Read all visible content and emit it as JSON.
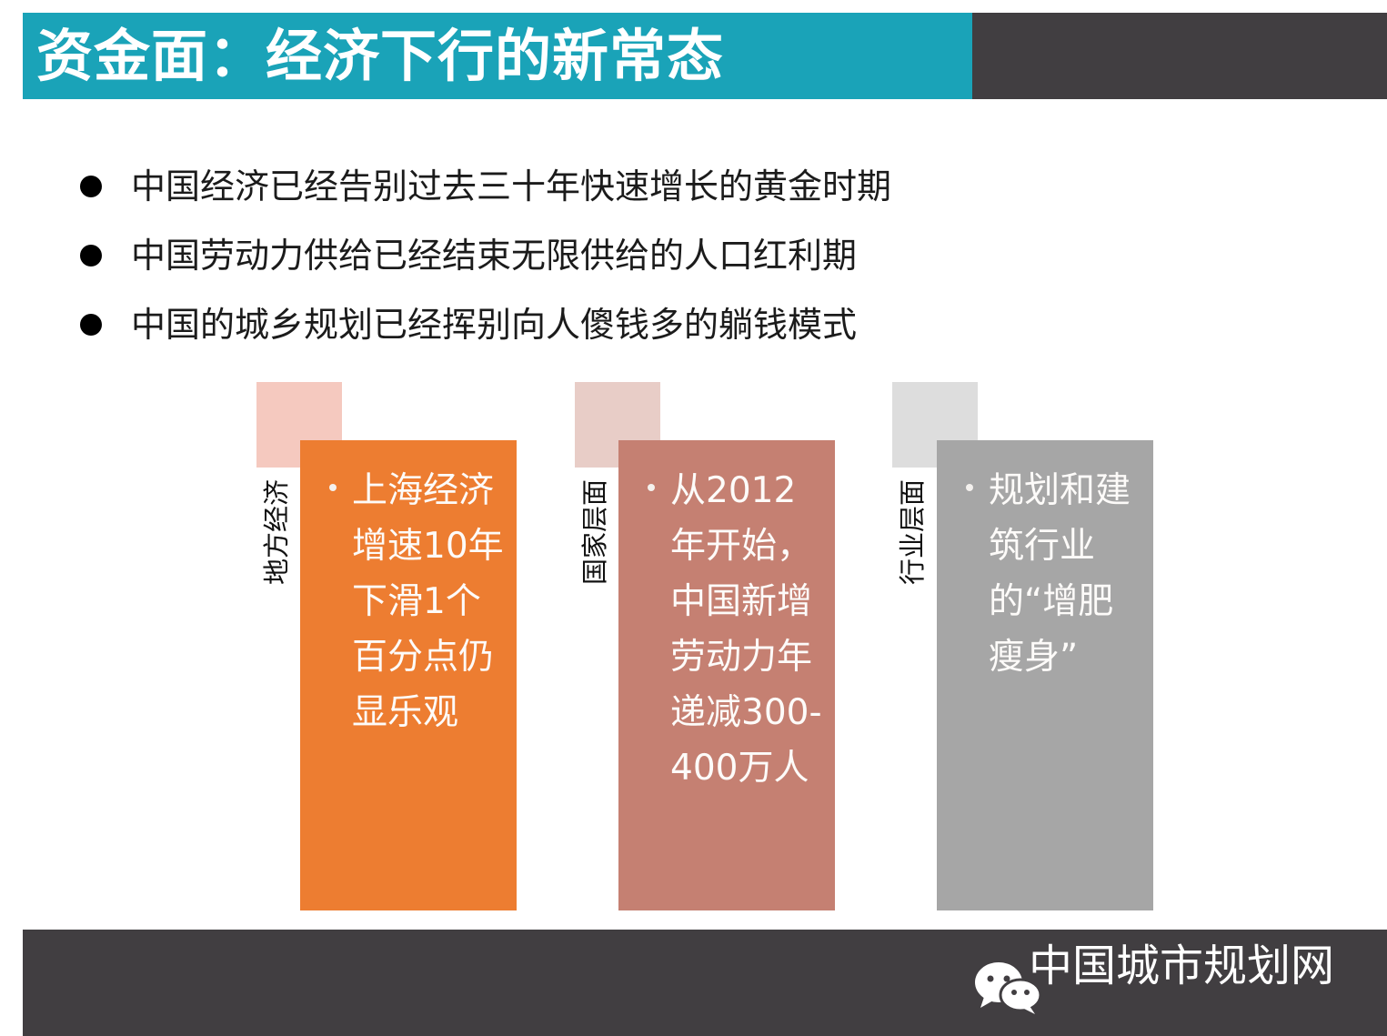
{
  "slide": {
    "title": "资金面：经济下行的新常态"
  },
  "bullets": [
    "中国经济已经告别过去三十年快速增长的黄金时期",
    "中国劳动力供给已经结束无限供给的人口红利期",
    "中国的城乡规划已经挥别向人傻钱多的躺钱模式"
  ],
  "cards": [
    {
      "side_label": "地方经济",
      "text": "上海经济增速10年下滑1个百分点仍显乐观",
      "color": "#ed7d31",
      "square_color": "#f5c9bf"
    },
    {
      "side_label": "国家层面",
      "text": "从2012年开始，中国新增劳动力年递减300-400万人",
      "color": "#c58072",
      "square_color": "#e8cdc7"
    },
    {
      "side_label": "行业层面",
      "text": "规划和建筑行业的“增肥瘦身”",
      "color": "#a6a6a6",
      "square_color": "#dddddd"
    }
  ],
  "footer": {
    "brand": "中国城市规划网",
    "icon": "wechat-icon"
  },
  "colors": {
    "title_bar": "#1aa3b8",
    "dark_bar": "#413e41"
  }
}
